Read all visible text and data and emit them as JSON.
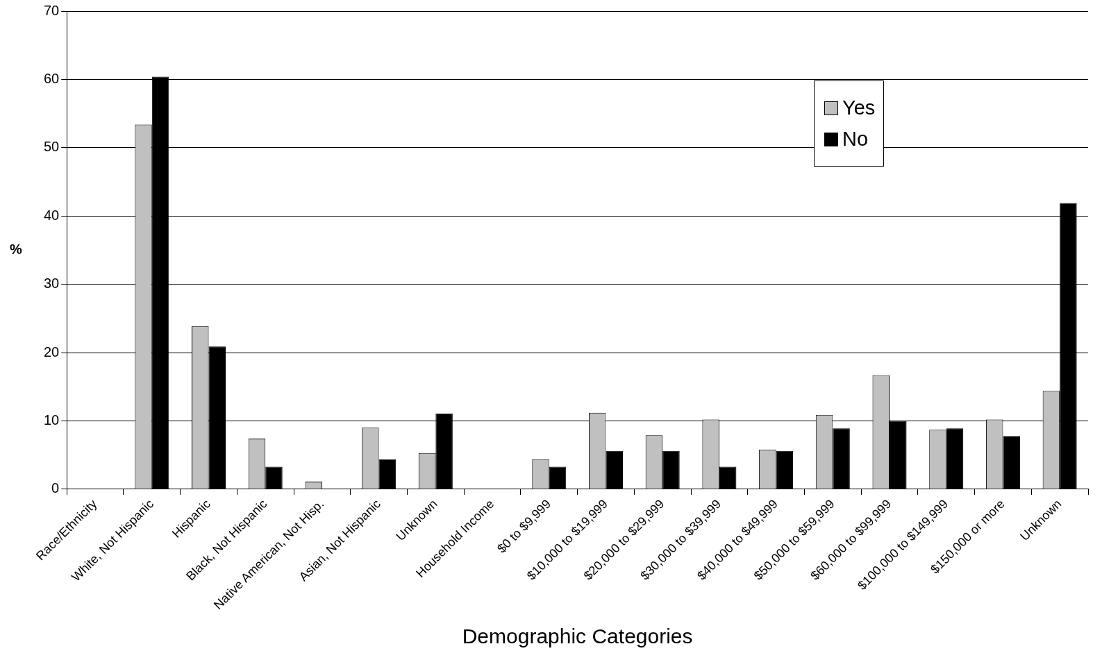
{
  "chart_data": {
    "type": "bar",
    "xlabel": "Demographic Categories",
    "ylabel": "%",
    "categories": [
      "Race/Ethnicity",
      "White, Not Hispanic",
      "Hispanic",
      "Black, Not Hispanic",
      "Native American, Not Hisp.",
      "Asian, Not Hispanic",
      "Unknown",
      "Household Income",
      "$0 to $9,999",
      "$10,000 to $19,999",
      "$20,000 to $29,999",
      "$30,000 to $39,999",
      "$40,000 to $49,999",
      "$50,000 to $59,999",
      "$60,000 to $99,999",
      "$100,000 to $149,999",
      "$150,000 or more",
      "Unknown"
    ],
    "series": [
      {
        "name": "Yes",
        "color": "#c0c0c0",
        "values": [
          null,
          53.4,
          23.9,
          7.4,
          1.1,
          9.0,
          5.3,
          null,
          4.4,
          11.2,
          7.9,
          10.2,
          5.8,
          10.9,
          16.7,
          8.7,
          10.2,
          14.4
        ]
      },
      {
        "name": "No",
        "color": "#000000",
        "values": [
          null,
          60.4,
          20.9,
          3.3,
          null,
          4.4,
          11.1,
          null,
          3.3,
          5.6,
          5.6,
          3.3,
          5.6,
          8.9,
          10.0,
          8.9,
          7.8,
          41.9
        ]
      }
    ],
    "ylim": [
      0,
      70
    ],
    "yticks": [
      0,
      10,
      20,
      30,
      40,
      50,
      60,
      70
    ],
    "grid": "y",
    "legend": "top right"
  }
}
